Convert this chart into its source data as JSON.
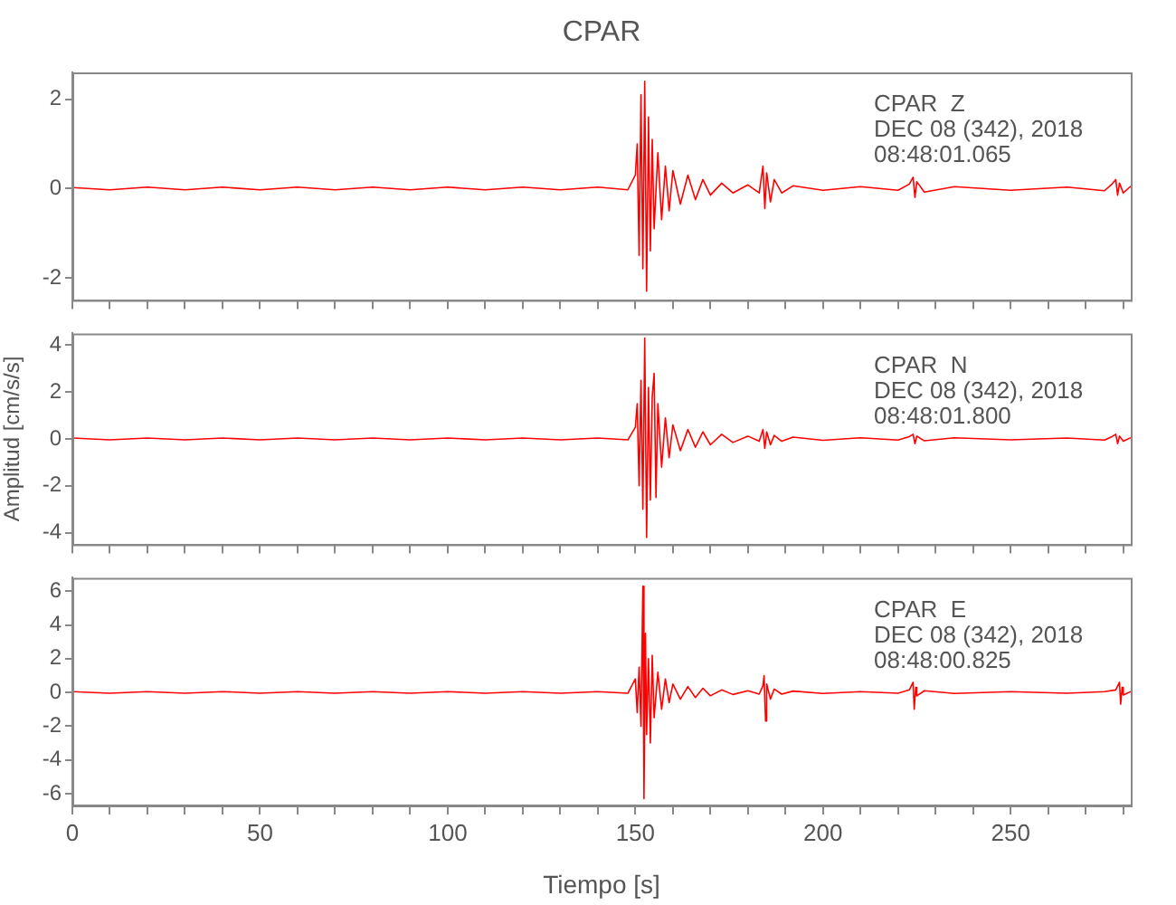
{
  "chart_data": [
    {
      "type": "line",
      "title": "CPAR",
      "xlim": [
        0,
        282
      ],
      "xticks": [
        0,
        {
          "value": 10,
          "label": null
        },
        {
          "value": 20,
          "label": null
        },
        {
          "value": 30,
          "label": null
        },
        {
          "value": 40,
          "label": null
        },
        50,
        {
          "value": 60,
          "label": null
        },
        {
          "value": 70,
          "label": null
        },
        {
          "value": 80,
          "label": null
        },
        {
          "value": 90,
          "label": null
        },
        100,
        {
          "value": 110,
          "label": null
        },
        {
          "value": 120,
          "label": null
        },
        {
          "value": 130,
          "label": null
        },
        {
          "value": 140,
          "label": null
        },
        150,
        {
          "value": 160,
          "label": null
        },
        {
          "value": 170,
          "label": null
        },
        {
          "value": 180,
          "label": null
        },
        {
          "value": 190,
          "label": null
        },
        200,
        {
          "value": 210,
          "label": null
        },
        {
          "value": 220,
          "label": null
        },
        {
          "value": 230,
          "label": null
        },
        {
          "value": 240,
          "label": null
        },
        250,
        {
          "value": 260,
          "label": null
        },
        {
          "value": 270,
          "label": null
        },
        {
          "value": 280,
          "label": null
        }
      ],
      "ylim": [
        -2.5,
        2.6
      ],
      "yticks": [
        -2,
        0,
        2
      ],
      "tick_labels": "y",
      "marker": "none",
      "annotations": [
        "CPAR  Z",
        "DEC 08 (342), 2018",
        "08:48:01.065"
      ],
      "series": [
        {
          "color": "#ff0000",
          "x": [
            0,
            10,
            20,
            30,
            40,
            50,
            60,
            70,
            80,
            90,
            100,
            110,
            120,
            130,
            140,
            148,
            150,
            150.5,
            151,
            151.5,
            152,
            152.5,
            153,
            153.5,
            154,
            154.5,
            155,
            156,
            157,
            158,
            159,
            160,
            162,
            164,
            166,
            168,
            170,
            173,
            176,
            180,
            183,
            184,
            184.5,
            185,
            186,
            187,
            189,
            192,
            200,
            210,
            220,
            223,
            224,
            224.5,
            225,
            227,
            235,
            250,
            265,
            275,
            277,
            278,
            278.5,
            279,
            280,
            282
          ],
          "values": [
            0.02,
            -0.03,
            0.03,
            -0.03,
            0.03,
            -0.03,
            0.03,
            -0.03,
            0.03,
            -0.03,
            0.03,
            -0.03,
            0.03,
            -0.03,
            0.03,
            -0.03,
            0.3,
            1.0,
            -1.5,
            2.1,
            -1.8,
            2.4,
            -2.3,
            1.6,
            -1.4,
            1.1,
            -0.9,
            0.8,
            -0.7,
            0.5,
            -0.5,
            0.4,
            -0.35,
            0.3,
            -0.25,
            0.2,
            -0.15,
            0.12,
            -0.1,
            0.08,
            -0.1,
            0.5,
            -0.45,
            0.35,
            -0.3,
            0.2,
            -0.1,
            0.06,
            -0.04,
            0.04,
            -0.04,
            0.1,
            0.25,
            -0.2,
            0.15,
            -0.08,
            0.04,
            -0.04,
            0.03,
            -0.05,
            0.1,
            0.2,
            -0.15,
            0.12,
            -0.1,
            0.05
          ]
        }
      ]
    },
    {
      "type": "line",
      "ylabel": "Amplitud [cm/s/s]",
      "xlim": [
        0,
        282
      ],
      "xticks": [
        0,
        {
          "value": 10,
          "label": null
        },
        {
          "value": 20,
          "label": null
        },
        {
          "value": 30,
          "label": null
        },
        {
          "value": 40,
          "label": null
        },
        50,
        {
          "value": 60,
          "label": null
        },
        {
          "value": 70,
          "label": null
        },
        {
          "value": 80,
          "label": null
        },
        {
          "value": 90,
          "label": null
        },
        100,
        {
          "value": 110,
          "label": null
        },
        {
          "value": 120,
          "label": null
        },
        {
          "value": 130,
          "label": null
        },
        {
          "value": 140,
          "label": null
        },
        150,
        {
          "value": 160,
          "label": null
        },
        {
          "value": 170,
          "label": null
        },
        {
          "value": 180,
          "label": null
        },
        {
          "value": 190,
          "label": null
        },
        200,
        {
          "value": 210,
          "label": null
        },
        {
          "value": 220,
          "label": null
        },
        {
          "value": 230,
          "label": null
        },
        {
          "value": 240,
          "label": null
        },
        250,
        {
          "value": 260,
          "label": null
        },
        {
          "value": 270,
          "label": null
        },
        {
          "value": 280,
          "label": null
        }
      ],
      "ylim": [
        -4.5,
        4.5
      ],
      "yticks": [
        -4,
        -2,
        0,
        2,
        4
      ],
      "tick_labels": "y",
      "marker": "none",
      "annotations": [
        "CPAR  N",
        "DEC 08 (342), 2018",
        "08:48:01.800"
      ],
      "series": [
        {
          "color": "#ff0000",
          "x": [
            0,
            10,
            20,
            30,
            40,
            50,
            60,
            70,
            80,
            90,
            100,
            110,
            120,
            130,
            140,
            148,
            150,
            150.5,
            151,
            151.5,
            152,
            152.5,
            153,
            153.5,
            154,
            154.5,
            155,
            155.5,
            156,
            157,
            158,
            159,
            160,
            162,
            164,
            166,
            168,
            170,
            173,
            176,
            180,
            183,
            184,
            184.5,
            185,
            186,
            187,
            189,
            192,
            200,
            210,
            220,
            223,
            224,
            224.5,
            225,
            227,
            235,
            250,
            265,
            275,
            277,
            278,
            278.5,
            279,
            280,
            282
          ],
          "values": [
            0.04,
            -0.04,
            0.04,
            -0.04,
            0.04,
            -0.04,
            0.04,
            -0.04,
            0.04,
            -0.04,
            0.04,
            -0.04,
            0.04,
            -0.04,
            0.04,
            -0.04,
            0.5,
            1.5,
            -2.0,
            2.5,
            -3.0,
            4.3,
            -4.2,
            2.2,
            -2.6,
            1.8,
            2.8,
            -2.5,
            1.5,
            -1.2,
            0.9,
            -0.8,
            0.6,
            -0.5,
            0.4,
            -0.35,
            0.3,
            -0.25,
            0.2,
            -0.15,
            0.12,
            -0.1,
            0.4,
            -0.4,
            0.3,
            -0.25,
            0.15,
            -0.1,
            0.08,
            -0.06,
            0.05,
            -0.05,
            0.1,
            0.2,
            -0.2,
            0.12,
            -0.08,
            0.05,
            -0.04,
            0.04,
            -0.05,
            0.1,
            0.2,
            -0.2,
            0.12,
            -0.1,
            0.05
          ]
        }
      ]
    },
    {
      "type": "line",
      "xlabel": "Tiempo [s]",
      "xlim": [
        0,
        282
      ],
      "xticks": [
        0,
        {
          "value": 10,
          "label": null
        },
        {
          "value": 20,
          "label": null
        },
        {
          "value": 30,
          "label": null
        },
        {
          "value": 40,
          "label": null
        },
        50,
        {
          "value": 60,
          "label": null
        },
        {
          "value": 70,
          "label": null
        },
        {
          "value": 80,
          "label": null
        },
        {
          "value": 90,
          "label": null
        },
        100,
        {
          "value": 110,
          "label": null
        },
        {
          "value": 120,
          "label": null
        },
        {
          "value": 130,
          "label": null
        },
        {
          "value": 140,
          "label": null
        },
        150,
        {
          "value": 160,
          "label": null
        },
        {
          "value": 170,
          "label": null
        },
        {
          "value": 180,
          "label": null
        },
        {
          "value": 190,
          "label": null
        },
        200,
        {
          "value": 210,
          "label": null
        },
        {
          "value": 220,
          "label": null
        },
        {
          "value": 230,
          "label": null
        },
        {
          "value": 240,
          "label": null
        },
        250,
        {
          "value": 260,
          "label": null
        },
        {
          "value": 270,
          "label": null
        },
        {
          "value": 280,
          "label": null
        }
      ],
      "ylim": [
        -6.7,
        6.8
      ],
      "yticks": [
        -6,
        -4,
        -2,
        0,
        2,
        4,
        6
      ],
      "marker": "none",
      "annotations": [
        "CPAR  E",
        "DEC 08 (342), 2018",
        "08:48:00.825"
      ],
      "series": [
        {
          "color": "#ff0000",
          "x": [
            0,
            10,
            20,
            30,
            40,
            50,
            60,
            70,
            80,
            90,
            100,
            110,
            120,
            130,
            140,
            148,
            150,
            150.5,
            151,
            151.5,
            152,
            152.3,
            152.7,
            153,
            153.5,
            154,
            154.5,
            155,
            156,
            157,
            158,
            159,
            160,
            162,
            164,
            166,
            168,
            170,
            173,
            176,
            180,
            183,
            184,
            184.3,
            184.7,
            185,
            186,
            187,
            189,
            192,
            200,
            210,
            220,
            223,
            224,
            224.3,
            224.7,
            225,
            227,
            235,
            250,
            265,
            275,
            278,
            279,
            279.3,
            279.7,
            280,
            282
          ],
          "values": [
            0.05,
            -0.05,
            0.05,
            -0.05,
            0.05,
            -0.05,
            0.05,
            -0.05,
            0.05,
            -0.05,
            0.05,
            -0.05,
            0.05,
            -0.05,
            0.05,
            -0.05,
            0.8,
            -1.2,
            1.5,
            -2.0,
            6.3,
            -6.3,
            3.5,
            -2.5,
            2.0,
            -3.0,
            2.2,
            -1.5,
            1.2,
            -1.0,
            0.8,
            -0.6,
            0.5,
            -0.4,
            0.35,
            -0.3,
            0.25,
            -0.2,
            0.15,
            -0.12,
            0.1,
            -0.1,
            0.4,
            1.0,
            -1.7,
            0.5,
            -0.4,
            0.2,
            -0.1,
            0.08,
            -0.06,
            0.05,
            -0.05,
            0.15,
            0.6,
            -1.0,
            0.3,
            -0.2,
            0.1,
            -0.06,
            0.05,
            -0.05,
            0.05,
            0.15,
            0.6,
            -0.7,
            0.3,
            -0.15,
            0.05
          ]
        }
      ]
    }
  ]
}
